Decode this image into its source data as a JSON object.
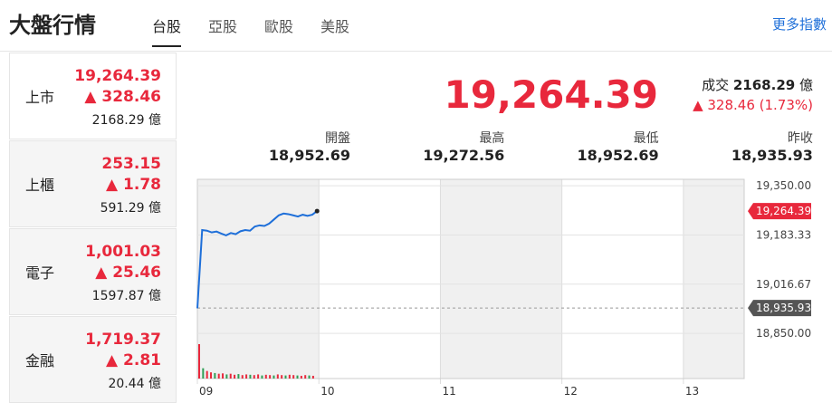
{
  "header": {
    "title": "大盤行情",
    "tabs": [
      "台股",
      "亞股",
      "歐股",
      "美股"
    ],
    "more": "更多指數"
  },
  "sidebar": [
    {
      "name": "上市",
      "price": "19,264.39",
      "change": "328.46",
      "volume": "2168.29 億"
    },
    {
      "name": "上櫃",
      "price": "253.15",
      "change": "1.78",
      "volume": "591.29 億"
    },
    {
      "name": "電子",
      "price": "1,001.03",
      "change": "25.46",
      "volume": "1597.87 億"
    },
    {
      "name": "金融",
      "price": "1,719.37",
      "change": "2.81",
      "volume": "20.44 億"
    }
  ],
  "quote": {
    "price": "19,264.39",
    "turnover_label": "成交",
    "turnover": "2168.29",
    "turnover_unit": "億",
    "change": "328.46 (1.73%)"
  },
  "stats": [
    {
      "label": "開盤",
      "value": "18,952.69"
    },
    {
      "label": "最高",
      "value": "19,272.56"
    },
    {
      "label": "最低",
      "value": "18,952.69"
    },
    {
      "label": "昨收",
      "value": "18,935.93"
    }
  ],
  "chart": {
    "type": "line",
    "categories": [
      "09",
      "10",
      "11",
      "12",
      "13"
    ],
    "ylim": [
      18838,
      19372
    ],
    "yticks": [
      {
        "value": 19350,
        "label": "19,350.00"
      },
      {
        "value": 19183.33,
        "label": "19,183.33"
      },
      {
        "value": 19016.67,
        "label": "19,016.67"
      },
      {
        "value": 18850,
        "label": "18,850.00"
      }
    ],
    "last": {
      "value": 19264.39,
      "label": "19,264.39"
    },
    "prev_close": {
      "value": 18935.93,
      "label": "18,935.93"
    },
    "color": "#1e6fd9",
    "values": [
      18935,
      19200,
      19198,
      19192,
      19195,
      19188,
      19182,
      19190,
      19186,
      19196,
      19200,
      19198,
      19212,
      19216,
      19214,
      19222,
      19236,
      19250,
      19256,
      19254,
      19250,
      19246,
      19252,
      19248,
      19252,
      19264.39
    ],
    "volume": [
      100,
      30,
      22,
      18,
      16,
      14,
      15,
      12,
      14,
      11,
      13,
      10,
      12,
      11,
      10,
      12,
      9,
      11,
      10,
      9,
      12,
      10,
      9,
      11,
      10,
      9,
      8,
      10,
      9,
      8
    ]
  }
}
